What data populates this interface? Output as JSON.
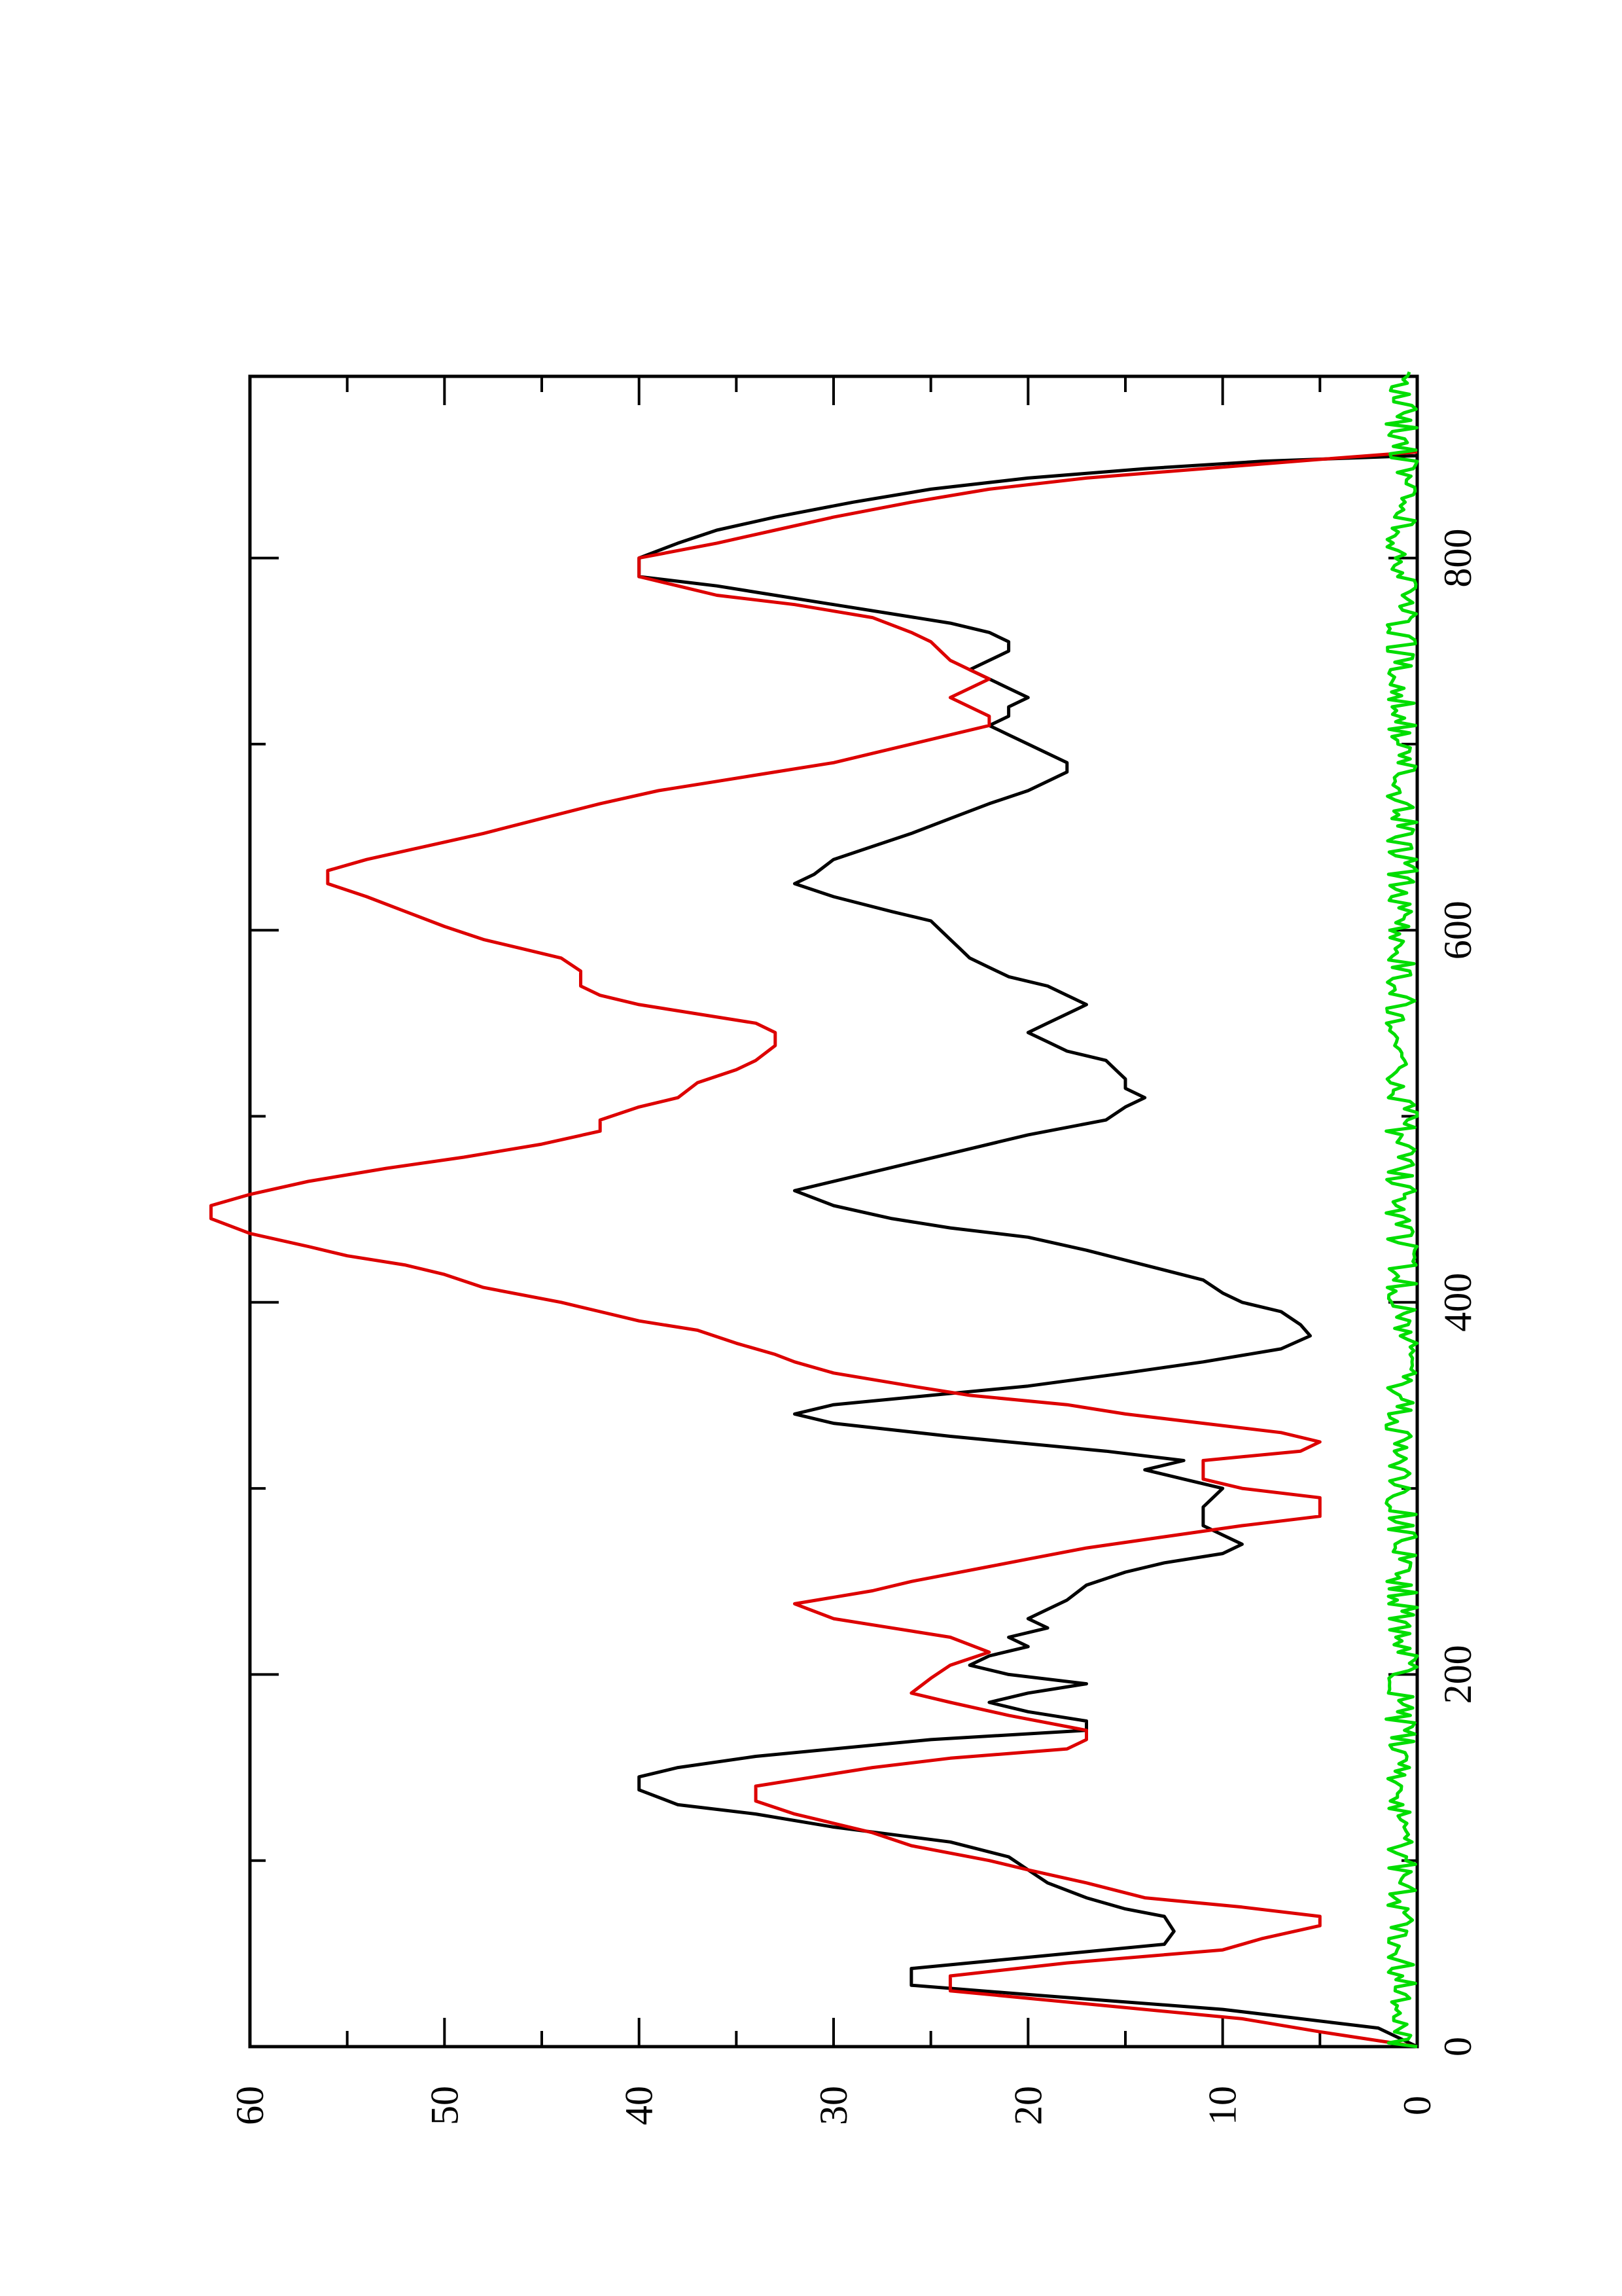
{
  "chart_data": {
    "type": "line",
    "rotated_page": true,
    "title": "",
    "xlabel": "",
    "ylabel": "",
    "xlim": [
      0,
      900
    ],
    "ylim": [
      0,
      60
    ],
    "x_ticks": [
      0,
      200,
      400,
      600,
      800
    ],
    "x_tick_labels": [
      "0",
      "200",
      "400",
      "600",
      "800"
    ],
    "x_minor_ticks": [
      100,
      300,
      500,
      700
    ],
    "y_ticks": [
      0,
      10,
      20,
      30,
      40,
      50,
      60
    ],
    "y_tick_labels": [
      "0",
      "10",
      "20",
      "30",
      "40",
      "50",
      "60"
    ],
    "y_minor_ticks": [
      5,
      15,
      25,
      35,
      45,
      55
    ],
    "grid": false,
    "legend": "none",
    "series": [
      {
        "color": "#000000",
        "points": [
          [
            0,
            0
          ],
          [
            10,
            2
          ],
          [
            20,
            10
          ],
          [
            28,
            20
          ],
          [
            33,
            26
          ],
          [
            42,
            26
          ],
          [
            48,
            20
          ],
          [
            55,
            13
          ],
          [
            62,
            12.5
          ],
          [
            70,
            13
          ],
          [
            74,
            15
          ],
          [
            80,
            17
          ],
          [
            88,
            19
          ],
          [
            95,
            20
          ],
          [
            102,
            21
          ],
          [
            110,
            24
          ],
          [
            118,
            30
          ],
          [
            125,
            34
          ],
          [
            130,
            38
          ],
          [
            138,
            40
          ],
          [
            145,
            40
          ],
          [
            150,
            38
          ],
          [
            156,
            34
          ],
          [
            160,
            30
          ],
          [
            165,
            25
          ],
          [
            170,
            17
          ],
          [
            175,
            17
          ],
          [
            180,
            20
          ],
          [
            185,
            22
          ],
          [
            190,
            20
          ],
          [
            195,
            17
          ],
          [
            200,
            21
          ],
          [
            205,
            23
          ],
          [
            210,
            22
          ],
          [
            215,
            20
          ],
          [
            220,
            21
          ],
          [
            225,
            19
          ],
          [
            230,
            20
          ],
          [
            235,
            19
          ],
          [
            240,
            18
          ],
          [
            248,
            17
          ],
          [
            255,
            15
          ],
          [
            260,
            13
          ],
          [
            265,
            10
          ],
          [
            270,
            9
          ],
          [
            275,
            10
          ],
          [
            280,
            11
          ],
          [
            290,
            11
          ],
          [
            300,
            10
          ],
          [
            305,
            12
          ],
          [
            310,
            14
          ],
          [
            315,
            12
          ],
          [
            320,
            16
          ],
          [
            328,
            24
          ],
          [
            335,
            30
          ],
          [
            340,
            32
          ],
          [
            345,
            30
          ],
          [
            350,
            25
          ],
          [
            355,
            20
          ],
          [
            362,
            15
          ],
          [
            368,
            11
          ],
          [
            375,
            7
          ],
          [
            382,
            5.5
          ],
          [
            388,
            6
          ],
          [
            395,
            7
          ],
          [
            400,
            9
          ],
          [
            405,
            10
          ],
          [
            412,
            11
          ],
          [
            420,
            14
          ],
          [
            428,
            17
          ],
          [
            435,
            20
          ],
          [
            440,
            24
          ],
          [
            445,
            27
          ],
          [
            452,
            30
          ],
          [
            460,
            32
          ],
          [
            470,
            28
          ],
          [
            480,
            24
          ],
          [
            490,
            20
          ],
          [
            498,
            16
          ],
          [
            505,
            15
          ],
          [
            510,
            14
          ],
          [
            515,
            15
          ],
          [
            520,
            15
          ],
          [
            525,
            15.5
          ],
          [
            530,
            16
          ],
          [
            535,
            18
          ],
          [
            540,
            19
          ],
          [
            545,
            20
          ],
          [
            550,
            19
          ],
          [
            555,
            18
          ],
          [
            560,
            17
          ],
          [
            565,
            18
          ],
          [
            570,
            19
          ],
          [
            575,
            21
          ],
          [
            580,
            22
          ],
          [
            585,
            23
          ],
          [
            590,
            23.5
          ],
          [
            595,
            24
          ],
          [
            600,
            24.5
          ],
          [
            605,
            25
          ],
          [
            610,
            27
          ],
          [
            618,
            30
          ],
          [
            625,
            32
          ],
          [
            630,
            31
          ],
          [
            638,
            30
          ],
          [
            645,
            28
          ],
          [
            652,
            26
          ],
          [
            660,
            24
          ],
          [
            668,
            22
          ],
          [
            675,
            20
          ],
          [
            680,
            19
          ],
          [
            685,
            18
          ],
          [
            690,
            18
          ],
          [
            695,
            19
          ],
          [
            700,
            20
          ],
          [
            705,
            21
          ],
          [
            710,
            22
          ],
          [
            715,
            21
          ],
          [
            720,
            21
          ],
          [
            725,
            20
          ],
          [
            730,
            21
          ],
          [
            735,
            22
          ],
          [
            740,
            23
          ],
          [
            745,
            22
          ],
          [
            750,
            21
          ],
          [
            755,
            21
          ],
          [
            760,
            22
          ],
          [
            765,
            24
          ],
          [
            770,
            27
          ],
          [
            775,
            30
          ],
          [
            780,
            33
          ],
          [
            785,
            36
          ],
          [
            790,
            40
          ],
          [
            800,
            40
          ],
          [
            808,
            38
          ],
          [
            815,
            36
          ],
          [
            822,
            33
          ],
          [
            830,
            29
          ],
          [
            837,
            25
          ],
          [
            843,
            20
          ],
          [
            848,
            14
          ],
          [
            852,
            8
          ],
          [
            855,
            0
          ]
        ]
      },
      {
        "color": "#dd0000",
        "points": [
          [
            0,
            0
          ],
          [
            8,
            5
          ],
          [
            15,
            9
          ],
          [
            22,
            16
          ],
          [
            30,
            24
          ],
          [
            38,
            24
          ],
          [
            45,
            18
          ],
          [
            52,
            10
          ],
          [
            58,
            8
          ],
          [
            65,
            5
          ],
          [
            70,
            5
          ],
          [
            75,
            9
          ],
          [
            80,
            14
          ],
          [
            88,
            17
          ],
          [
            95,
            20
          ],
          [
            100,
            22
          ],
          [
            108,
            26
          ],
          [
            115,
            28
          ],
          [
            120,
            30
          ],
          [
            125,
            32
          ],
          [
            132,
            34
          ],
          [
            140,
            34
          ],
          [
            145,
            31
          ],
          [
            150,
            28
          ],
          [
            155,
            24
          ],
          [
            160,
            18
          ],
          [
            165,
            17
          ],
          [
            170,
            17
          ],
          [
            178,
            21
          ],
          [
            185,
            24
          ],
          [
            190,
            26
          ],
          [
            198,
            25
          ],
          [
            205,
            24
          ],
          [
            212,
            22
          ],
          [
            220,
            24
          ],
          [
            225,
            27
          ],
          [
            230,
            30
          ],
          [
            238,
            32
          ],
          [
            245,
            28
          ],
          [
            250,
            26
          ],
          [
            258,
            22
          ],
          [
            262,
            20
          ],
          [
            268,
            17
          ],
          [
            274,
            13
          ],
          [
            280,
            9
          ],
          [
            285,
            5
          ],
          [
            295,
            5
          ],
          [
            300,
            9
          ],
          [
            305,
            11
          ],
          [
            315,
            11
          ],
          [
            320,
            6
          ],
          [
            325,
            5
          ],
          [
            330,
            7
          ],
          [
            335,
            11
          ],
          [
            340,
            15
          ],
          [
            345,
            18
          ],
          [
            350,
            23
          ],
          [
            355,
            26
          ],
          [
            362,
            30
          ],
          [
            368,
            32
          ],
          [
            372,
            33
          ],
          [
            378,
            35
          ],
          [
            385,
            37
          ],
          [
            390,
            40
          ],
          [
            395,
            42
          ],
          [
            400,
            44
          ],
          [
            408,
            48
          ],
          [
            415,
            50
          ],
          [
            420,
            52
          ],
          [
            425,
            55
          ],
          [
            430,
            57
          ],
          [
            437,
            60
          ],
          [
            445,
            62
          ],
          [
            452,
            62
          ],
          [
            458,
            60
          ],
          [
            465,
            57
          ],
          [
            472,
            53
          ],
          [
            478,
            49
          ],
          [
            485,
            45
          ],
          [
            492,
            42
          ],
          [
            498,
            42
          ],
          [
            505,
            40
          ],
          [
            510,
            38
          ],
          [
            518,
            37
          ],
          [
            525,
            35
          ],
          [
            530,
            34
          ],
          [
            538,
            33
          ],
          [
            545,
            33
          ],
          [
            550,
            34
          ],
          [
            555,
            37
          ],
          [
            560,
            40
          ],
          [
            565,
            42
          ],
          [
            570,
            43
          ],
          [
            578,
            43
          ],
          [
            585,
            44
          ],
          [
            590,
            46
          ],
          [
            595,
            48
          ],
          [
            602,
            50
          ],
          [
            610,
            52
          ],
          [
            618,
            54
          ],
          [
            625,
            56
          ],
          [
            632,
            56
          ],
          [
            638,
            54
          ],
          [
            645,
            51
          ],
          [
            652,
            48
          ],
          [
            660,
            45
          ],
          [
            668,
            42
          ],
          [
            675,
            39
          ],
          [
            680,
            36
          ],
          [
            685,
            33
          ],
          [
            690,
            30
          ],
          [
            695,
            28
          ],
          [
            700,
            26
          ],
          [
            705,
            24
          ],
          [
            710,
            22
          ],
          [
            715,
            22
          ],
          [
            720,
            23
          ],
          [
            725,
            24
          ],
          [
            730,
            23
          ],
          [
            735,
            22
          ],
          [
            740,
            23
          ],
          [
            745,
            24
          ],
          [
            750,
            24.5
          ],
          [
            755,
            25
          ],
          [
            760,
            26
          ],
          [
            768,
            28
          ],
          [
            775,
            32
          ],
          [
            780,
            36
          ],
          [
            785,
            38
          ],
          [
            790,
            40
          ],
          [
            800,
            40
          ],
          [
            808,
            36
          ],
          [
            815,
            33
          ],
          [
            822,
            30
          ],
          [
            830,
            26
          ],
          [
            837,
            22
          ],
          [
            843,
            17
          ],
          [
            848,
            11
          ],
          [
            853,
            5
          ],
          [
            857,
            0
          ]
        ]
      },
      {
        "color": "#00dd00",
        "points": []
      }
    ]
  }
}
